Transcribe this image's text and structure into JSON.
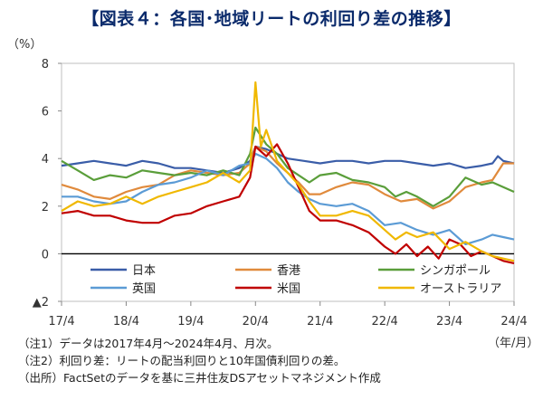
{
  "title": "【図表４：各国･地域リートの利回り差の推移】",
  "y_unit": "（%）",
  "x_unit": "（年/月）",
  "notes": [
    "（注1）データは2017年4月～2024年4月、月次。",
    "（注2）利回り差：リートの配当利回りと10年国債利回りの差。",
    "（出所）FactSetのデータを基に三井住友DSアセットマネジメント作成"
  ],
  "chart_data": {
    "type": "line",
    "title": "各国･地域リートの利回り差の推移",
    "xlabel": "",
    "ylabel": "%",
    "ylim": [
      -2,
      8
    ],
    "xlim": [
      0,
      84
    ],
    "yticks": [
      -2,
      0,
      2,
      4,
      6,
      8
    ],
    "ytick_labels": [
      "▲2",
      "0",
      "2",
      "4",
      "6",
      "8"
    ],
    "xticks": [
      0,
      12,
      24,
      36,
      48,
      60,
      72,
      84
    ],
    "xtick_labels": [
      "17/4",
      "18/4",
      "19/4",
      "20/4",
      "21/4",
      "22/4",
      "23/4",
      "24/4"
    ],
    "legend": "bottom-inside",
    "series": [
      {
        "name": "日本",
        "color": "#3a5da8",
        "points": [
          [
            0,
            3.7
          ],
          [
            3,
            3.8
          ],
          [
            6,
            3.9
          ],
          [
            9,
            3.8
          ],
          [
            12,
            3.7
          ],
          [
            15,
            3.9
          ],
          [
            18,
            3.8
          ],
          [
            21,
            3.6
          ],
          [
            24,
            3.6
          ],
          [
            27,
            3.5
          ],
          [
            30,
            3.4
          ],
          [
            33,
            3.6
          ],
          [
            35,
            3.9
          ],
          [
            36,
            4.5
          ],
          [
            38,
            4.4
          ],
          [
            40,
            4.2
          ],
          [
            42,
            4.0
          ],
          [
            45,
            3.9
          ],
          [
            48,
            3.8
          ],
          [
            51,
            3.9
          ],
          [
            54,
            3.9
          ],
          [
            57,
            3.8
          ],
          [
            60,
            3.9
          ],
          [
            63,
            3.9
          ],
          [
            66,
            3.8
          ],
          [
            69,
            3.7
          ],
          [
            72,
            3.8
          ],
          [
            75,
            3.6
          ],
          [
            78,
            3.7
          ],
          [
            80,
            3.8
          ],
          [
            81,
            4.1
          ],
          [
            82,
            3.9
          ],
          [
            84,
            3.8
          ]
        ]
      },
      {
        "name": "香港",
        "color": "#e08a3c",
        "points": [
          [
            0,
            2.9
          ],
          [
            3,
            2.7
          ],
          [
            6,
            2.4
          ],
          [
            9,
            2.3
          ],
          [
            12,
            2.6
          ],
          [
            15,
            2.8
          ],
          [
            18,
            2.9
          ],
          [
            21,
            3.3
          ],
          [
            24,
            3.5
          ],
          [
            27,
            3.4
          ],
          [
            30,
            3.3
          ],
          [
            33,
            3.4
          ],
          [
            35,
            3.8
          ],
          [
            36,
            4.5
          ],
          [
            38,
            4.3
          ],
          [
            40,
            3.8
          ],
          [
            42,
            3.4
          ],
          [
            44,
            3.0
          ],
          [
            46,
            2.5
          ],
          [
            48,
            2.5
          ],
          [
            51,
            2.8
          ],
          [
            54,
            3.0
          ],
          [
            57,
            2.9
          ],
          [
            60,
            2.5
          ],
          [
            63,
            2.2
          ],
          [
            66,
            2.3
          ],
          [
            69,
            1.9
          ],
          [
            72,
            2.2
          ],
          [
            75,
            2.8
          ],
          [
            78,
            3.0
          ],
          [
            80,
            3.1
          ],
          [
            82,
            3.8
          ],
          [
            84,
            3.8
          ]
        ]
      },
      {
        "name": "シンガポール",
        "color": "#5a9e3a",
        "points": [
          [
            0,
            3.9
          ],
          [
            3,
            3.5
          ],
          [
            6,
            3.1
          ],
          [
            9,
            3.3
          ],
          [
            12,
            3.2
          ],
          [
            15,
            3.5
          ],
          [
            18,
            3.4
          ],
          [
            21,
            3.3
          ],
          [
            24,
            3.4
          ],
          [
            27,
            3.3
          ],
          [
            30,
            3.5
          ],
          [
            33,
            3.3
          ],
          [
            35,
            4.2
          ],
          [
            36,
            5.3
          ],
          [
            38,
            4.6
          ],
          [
            40,
            4.2
          ],
          [
            42,
            3.6
          ],
          [
            44,
            3.3
          ],
          [
            46,
            3.0
          ],
          [
            48,
            3.3
          ],
          [
            51,
            3.4
          ],
          [
            54,
            3.1
          ],
          [
            57,
            3.0
          ],
          [
            60,
            2.8
          ],
          [
            62,
            2.4
          ],
          [
            64,
            2.6
          ],
          [
            66,
            2.4
          ],
          [
            69,
            2.0
          ],
          [
            72,
            2.4
          ],
          [
            75,
            3.2
          ],
          [
            78,
            2.9
          ],
          [
            80,
            3.0
          ],
          [
            82,
            2.8
          ],
          [
            84,
            2.6
          ]
        ]
      },
      {
        "name": "英国",
        "color": "#5b9bd5",
        "points": [
          [
            0,
            2.4
          ],
          [
            3,
            2.4
          ],
          [
            6,
            2.2
          ],
          [
            9,
            2.1
          ],
          [
            12,
            2.2
          ],
          [
            15,
            2.6
          ],
          [
            18,
            2.9
          ],
          [
            21,
            3.0
          ],
          [
            24,
            3.2
          ],
          [
            27,
            3.5
          ],
          [
            30,
            3.3
          ],
          [
            33,
            3.7
          ],
          [
            35,
            3.8
          ],
          [
            36,
            4.2
          ],
          [
            38,
            4.0
          ],
          [
            40,
            3.6
          ],
          [
            42,
            3.0
          ],
          [
            44,
            2.6
          ],
          [
            46,
            2.3
          ],
          [
            48,
            2.1
          ],
          [
            51,
            2.0
          ],
          [
            54,
            2.1
          ],
          [
            57,
            1.8
          ],
          [
            60,
            1.2
          ],
          [
            63,
            1.3
          ],
          [
            66,
            1.0
          ],
          [
            69,
            0.8
          ],
          [
            72,
            1.0
          ],
          [
            75,
            0.4
          ],
          [
            78,
            0.6
          ],
          [
            80,
            0.8
          ],
          [
            82,
            0.7
          ],
          [
            84,
            0.6
          ]
        ]
      },
      {
        "name": "米国",
        "color": "#c00000",
        "points": [
          [
            0,
            1.7
          ],
          [
            3,
            1.8
          ],
          [
            6,
            1.6
          ],
          [
            9,
            1.6
          ],
          [
            12,
            1.4
          ],
          [
            15,
            1.3
          ],
          [
            18,
            1.3
          ],
          [
            21,
            1.6
          ],
          [
            24,
            1.7
          ],
          [
            27,
            2.0
          ],
          [
            30,
            2.2
          ],
          [
            33,
            2.4
          ],
          [
            35,
            3.2
          ],
          [
            36,
            4.5
          ],
          [
            38,
            4.1
          ],
          [
            40,
            4.6
          ],
          [
            42,
            3.8
          ],
          [
            44,
            2.8
          ],
          [
            46,
            1.8
          ],
          [
            48,
            1.4
          ],
          [
            51,
            1.4
          ],
          [
            54,
            1.2
          ],
          [
            57,
            0.9
          ],
          [
            60,
            0.3
          ],
          [
            62,
            0.0
          ],
          [
            64,
            0.4
          ],
          [
            66,
            -0.1
          ],
          [
            68,
            0.3
          ],
          [
            70,
            -0.2
          ],
          [
            72,
            0.6
          ],
          [
            74,
            0.4
          ],
          [
            76,
            -0.1
          ],
          [
            78,
            0.1
          ],
          [
            80,
            -0.1
          ],
          [
            82,
            -0.3
          ],
          [
            84,
            -0.4
          ]
        ]
      },
      {
        "name": "オーストラリア",
        "color": "#f0b800",
        "points": [
          [
            0,
            1.8
          ],
          [
            3,
            2.2
          ],
          [
            6,
            2.0
          ],
          [
            9,
            2.1
          ],
          [
            12,
            2.4
          ],
          [
            15,
            2.1
          ],
          [
            18,
            2.4
          ],
          [
            21,
            2.6
          ],
          [
            24,
            2.8
          ],
          [
            27,
            3.0
          ],
          [
            30,
            3.4
          ],
          [
            33,
            3.0
          ],
          [
            35,
            3.5
          ],
          [
            36,
            7.2
          ],
          [
            37,
            4.5
          ],
          [
            38,
            5.2
          ],
          [
            40,
            3.9
          ],
          [
            42,
            3.4
          ],
          [
            44,
            2.9
          ],
          [
            46,
            2.2
          ],
          [
            48,
            1.6
          ],
          [
            51,
            1.6
          ],
          [
            54,
            1.8
          ],
          [
            57,
            1.6
          ],
          [
            60,
            1.0
          ],
          [
            62,
            0.6
          ],
          [
            64,
            0.9
          ],
          [
            66,
            0.7
          ],
          [
            69,
            0.9
          ],
          [
            72,
            0.2
          ],
          [
            75,
            0.5
          ],
          [
            78,
            0.1
          ],
          [
            80,
            -0.1
          ],
          [
            82,
            -0.2
          ],
          [
            84,
            -0.3
          ]
        ]
      }
    ]
  }
}
